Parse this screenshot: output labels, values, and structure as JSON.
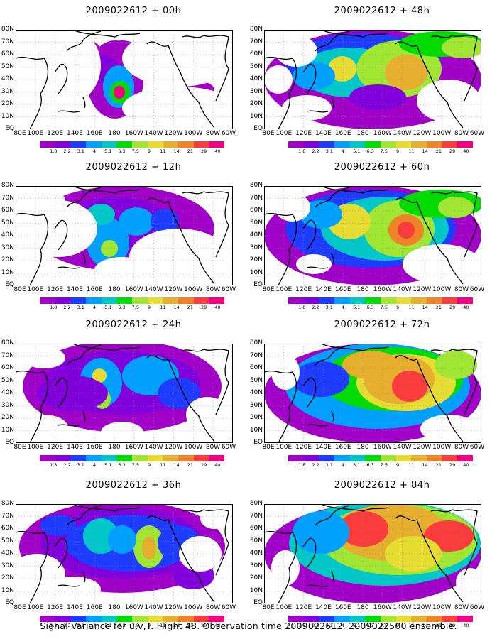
{
  "panels": [
    {
      "title": "2009022612 + 00h"
    },
    {
      "title": "2009022612 + 48h"
    },
    {
      "title": "2009022612 + 12h"
    },
    {
      "title": "2009022612 + 60h"
    },
    {
      "title": "2009022612 + 24h"
    },
    {
      "title": "2009022612 + 72h"
    },
    {
      "title": "2009022612 + 36h"
    },
    {
      "title": "2009022612 + 84h"
    }
  ],
  "lat_labels": [
    "80N",
    "70N",
    "60N",
    "50N",
    "40N",
    "30N",
    "20N",
    "10N",
    "EQ"
  ],
  "lon_labels": [
    "80E",
    "100E",
    "120E",
    "140E",
    "160E",
    "180",
    "160W",
    "140W",
    "120W",
    "100W",
    "80W",
    "60W"
  ],
  "colorbar": {
    "labels": [
      "1.8",
      "2.2",
      "3.1",
      "4",
      "5.1",
      "6.3",
      "7.5",
      "9",
      "11",
      "14",
      "21",
      "29",
      "40"
    ],
    "colors": [
      "#a000c8",
      "#8200dc",
      "#1e3cff",
      "#00a0ff",
      "#00c8c8",
      "#00dc00",
      "#a0e632",
      "#e6dc32",
      "#e6af2d",
      "#f08228",
      "#fa3c3c",
      "#f00082"
    ]
  },
  "footer": "Signal Variance for u,v,T. Flight 48. Observation time 2009022612. 2009022500 ensemble."
}
